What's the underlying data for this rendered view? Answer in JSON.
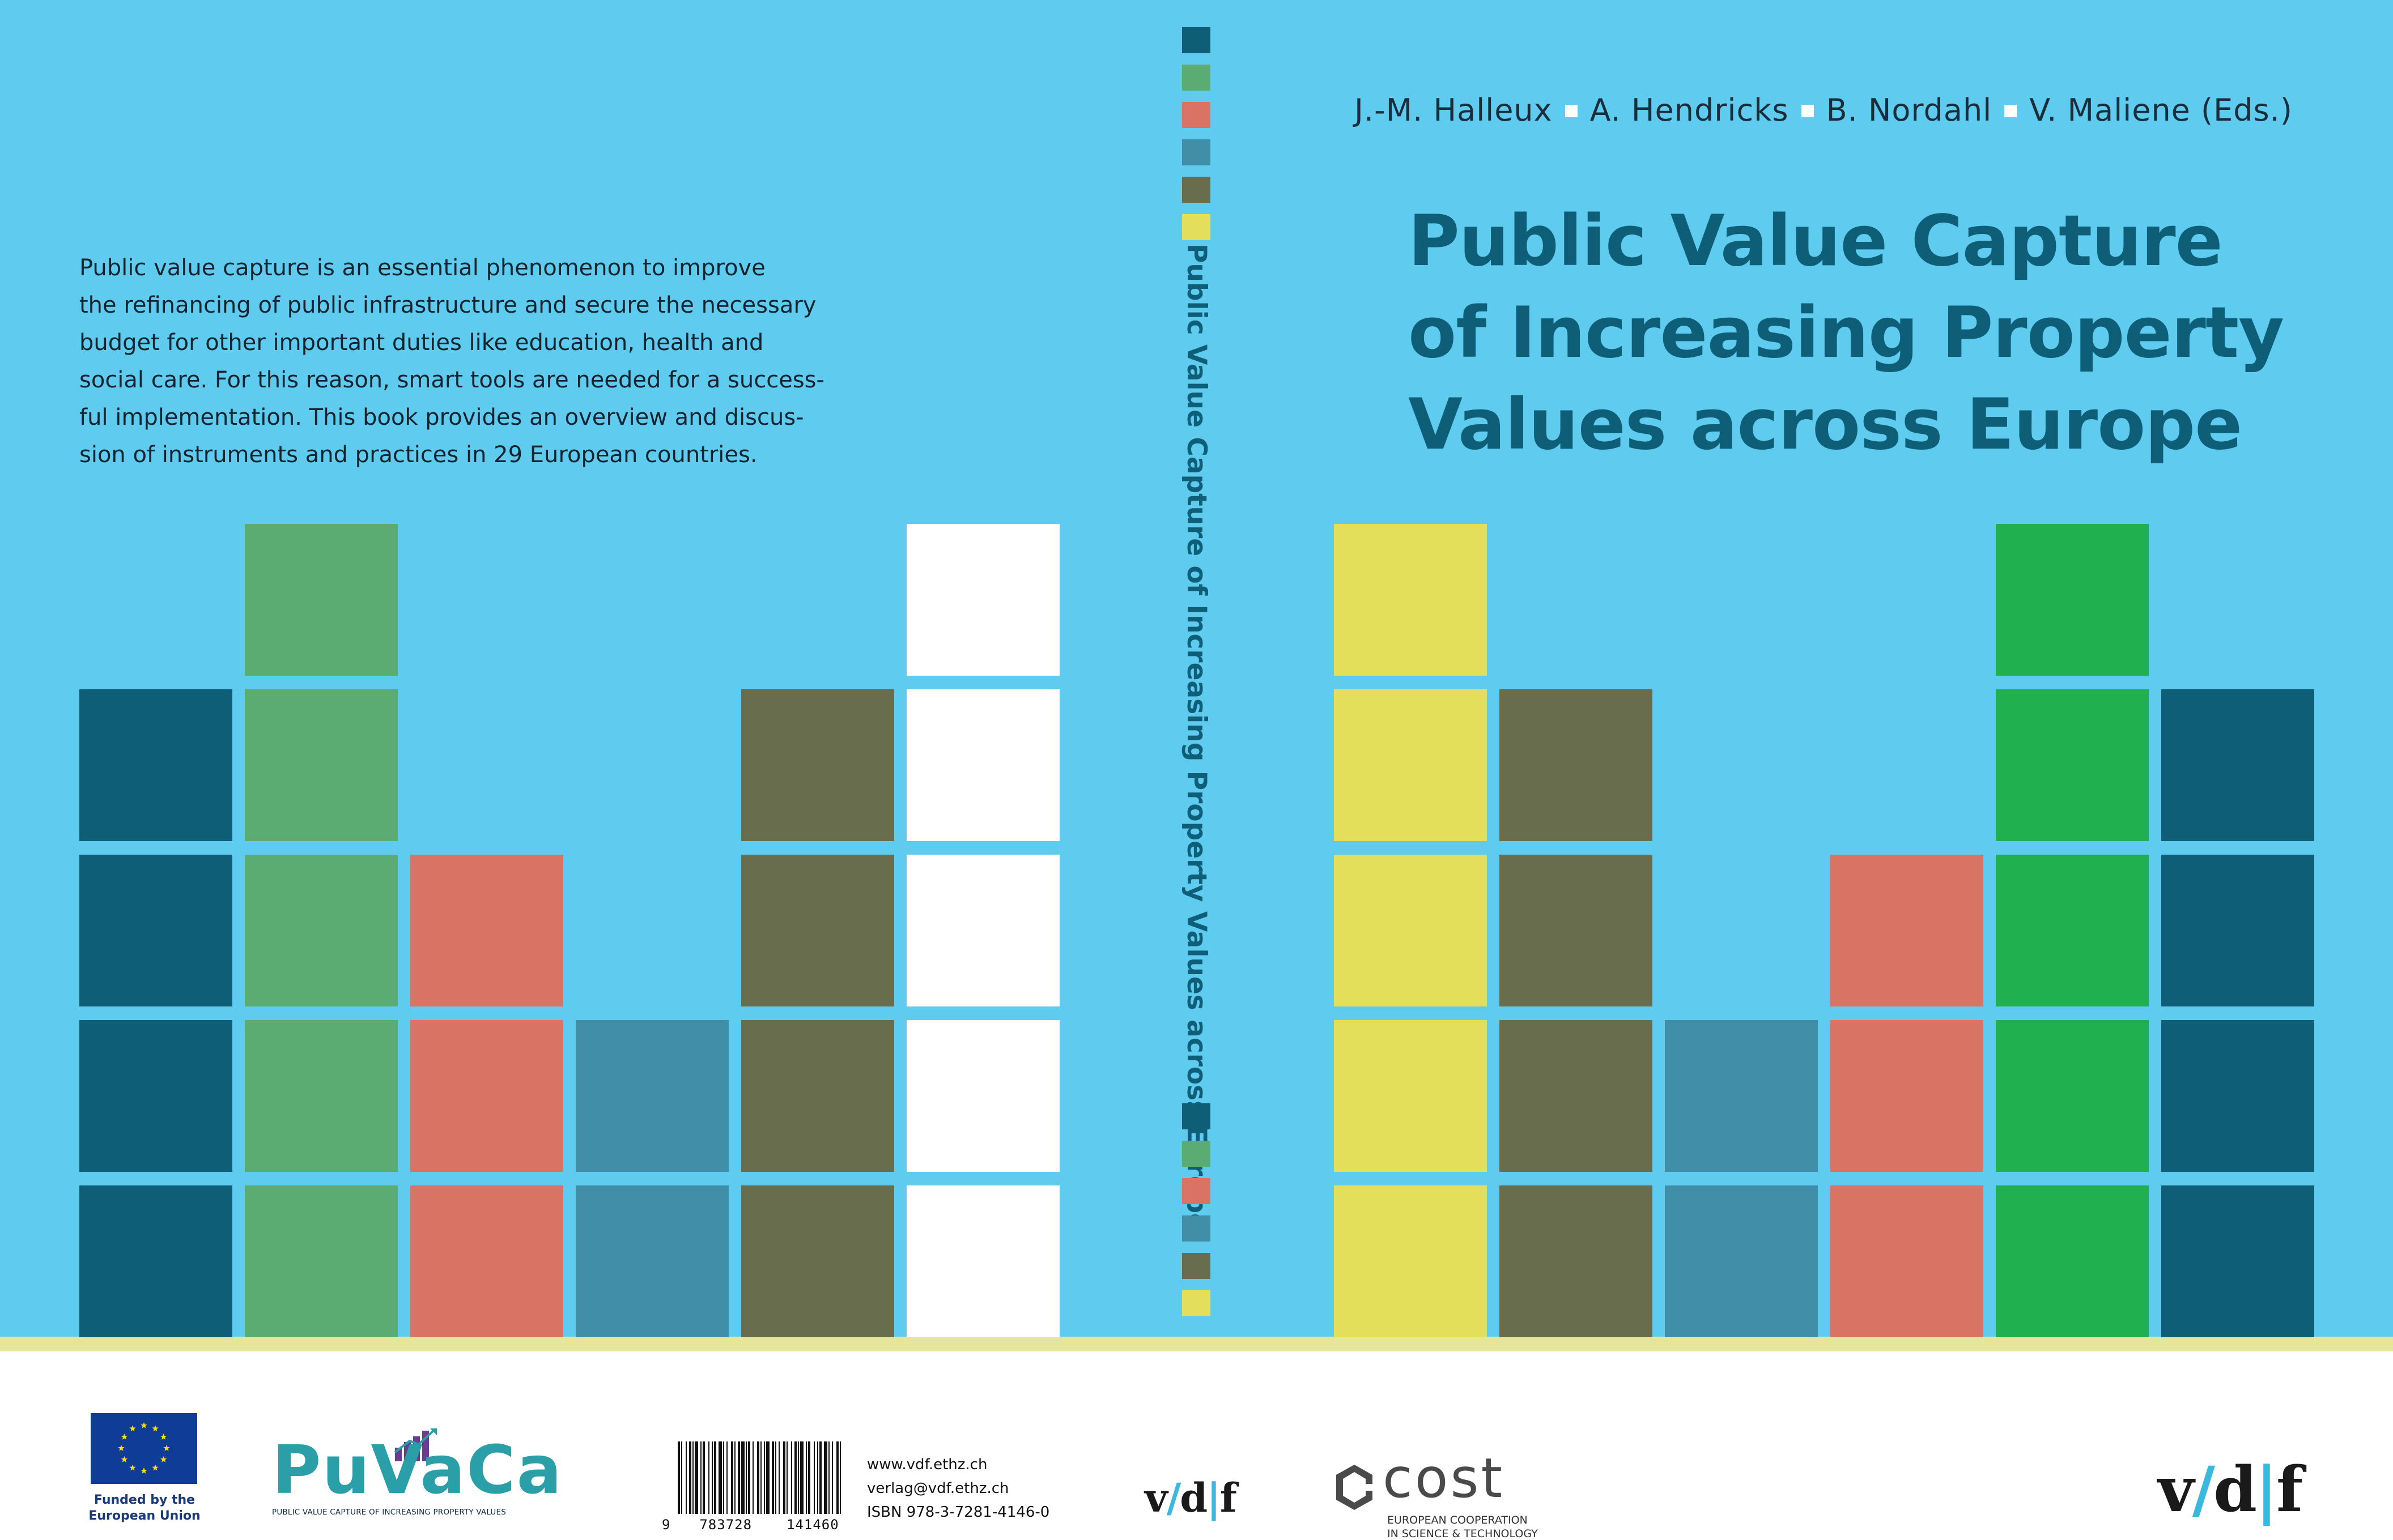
{
  "authors": {
    "author_1": "J.-M. Halleux",
    "author_2": "A. Hendricks",
    "author_3": "B. Nordahl",
    "author_4": "V. Maliene (Eds.)"
  },
  "title": {
    "line_1": "Public Value Capture",
    "line_2": "of Increasing Property",
    "line_3": "Values across Europe"
  },
  "spine": {
    "title": "Public Value Capture of Increasing Property Values across Europe"
  },
  "back_cover": {
    "blurb_lines": [
      "Public value capture is an essential phenomenon to improve",
      "the refinancing of public infrastructure and secure the necessary",
      "budget for other important duties like education, health and",
      "social care. For this reason, smart tools are needed for a success-",
      "ful implementation. This book provides an overview and discus-",
      "sion of instruments and practices in 29 European countries."
    ]
  },
  "palette": {
    "background": "#5ecbef",
    "title_color": "#0e5e78",
    "dark_teal": "#0e5e78",
    "sage_green": "#5aac72",
    "coral": "#d97364",
    "steel_blue": "#418ea8",
    "olive": "#686d4e",
    "white": "#ffffff",
    "yellow": "#e3df5b",
    "bright_green": "#20b050",
    "band": "#e6e59c"
  },
  "footer": {
    "eu_caption_line_1": "Funded by the",
    "eu_caption_line_2": "European Union",
    "puvaca_name": "PuVaCa",
    "puvaca_subtitle": "PUBLIC VALUE CAPTURE OF INCREASING PROPERTY VALUES",
    "barcode_digits_1": "9",
    "barcode_digits_2": "783728",
    "barcode_digits_3": "141460",
    "website": "www.vdf.ethz.ch",
    "email": "verlag@vdf.ethz.ch",
    "isbn": "ISBN 978-3-7281-4146-0",
    "publisher_v": "v",
    "publisher_slash": "/",
    "publisher_d": "d",
    "publisher_bar": "|",
    "publisher_f": "f",
    "cost_name": "cost",
    "cost_sub_line_1": "EUROPEAN COOPERATION",
    "cost_sub_line_2": "IN SCIENCE & TECHNOLOGY"
  }
}
